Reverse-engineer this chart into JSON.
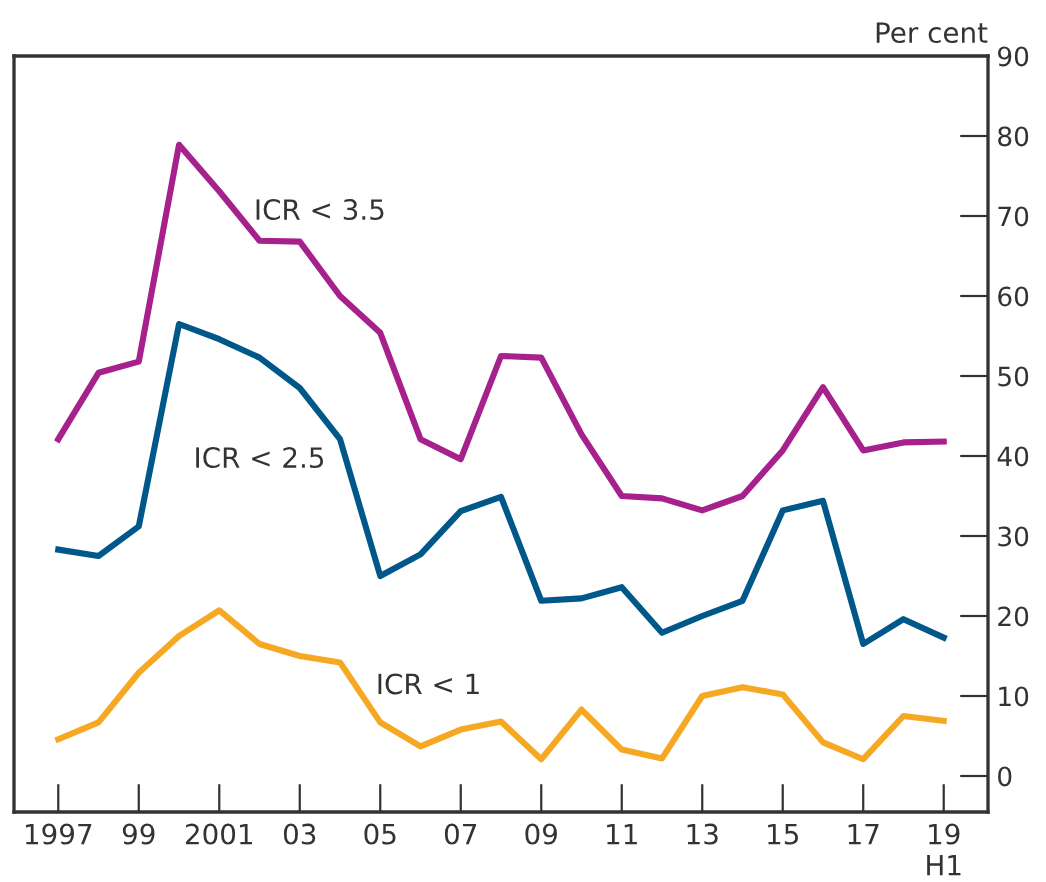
{
  "chart_data": {
    "type": "line",
    "ylabel": "Per cent",
    "x": [
      1997,
      1998,
      1999,
      2000,
      2001,
      2002,
      2003,
      2004,
      2005,
      2006,
      2007,
      2008,
      2009,
      2010,
      2011,
      2012,
      2013,
      2014,
      2015,
      2016,
      2017,
      2018,
      2019
    ],
    "series": [
      {
        "name": "ICR < 3.5",
        "color": "#a6218c",
        "values": [
          42.1,
          50.4,
          51.8,
          78.9,
          73.1,
          66.9,
          66.8,
          60,
          55.4,
          42.1,
          39.6,
          52.5,
          52.3,
          42.7,
          35,
          34.7,
          33.2,
          35,
          40.7,
          48.6,
          40.7,
          41.7,
          41.8
        ]
      },
      {
        "name": "ICR < 2.5",
        "color": "#00578a",
        "values": [
          28.3,
          27.5,
          31.2,
          56.5,
          54.6,
          52.3,
          48.5,
          42.1,
          25,
          27.7,
          33.1,
          34.9,
          21.9,
          22.2,
          23.6,
          17.9,
          20,
          21.9,
          33.2,
          34.4,
          16.5,
          19.6,
          17.3
        ]
      },
      {
        "name": "ICR < 1",
        "color": "#f7a823",
        "values": [
          4.6,
          6.7,
          12.9,
          17.5,
          20.7,
          16.5,
          15,
          14.2,
          6.7,
          3.7,
          5.8,
          6.8,
          2.1,
          8.3,
          3.3,
          2.2,
          10,
          11.1,
          10.2,
          4.2,
          2.1,
          7.5,
          6.9
        ]
      }
    ],
    "xlim": [
      1995.9,
      2020.1
    ],
    "ylim": [
      -4.5,
      90
    ],
    "xticks": [
      1997,
      {
        "value": 1999,
        "label": "99"
      },
      2001,
      {
        "value": 2003,
        "label": "03"
      },
      {
        "value": 2005,
        "label": "05"
      },
      {
        "value": 2007,
        "label": "07"
      },
      {
        "value": 2009,
        "label": "09"
      },
      {
        "value": 2011,
        "label": "11"
      },
      {
        "value": 2013,
        "label": "13"
      },
      {
        "value": 2015,
        "label": "15"
      },
      {
        "value": 2017,
        "label": "17"
      },
      {
        "value": 2019,
        "label": "19\nH1"
      }
    ],
    "yticks": [
      0,
      10,
      20,
      30,
      40,
      50,
      60,
      70,
      80,
      90
    ],
    "grid": false,
    "legend": false,
    "marker": "none",
    "line_style": "solid"
  }
}
